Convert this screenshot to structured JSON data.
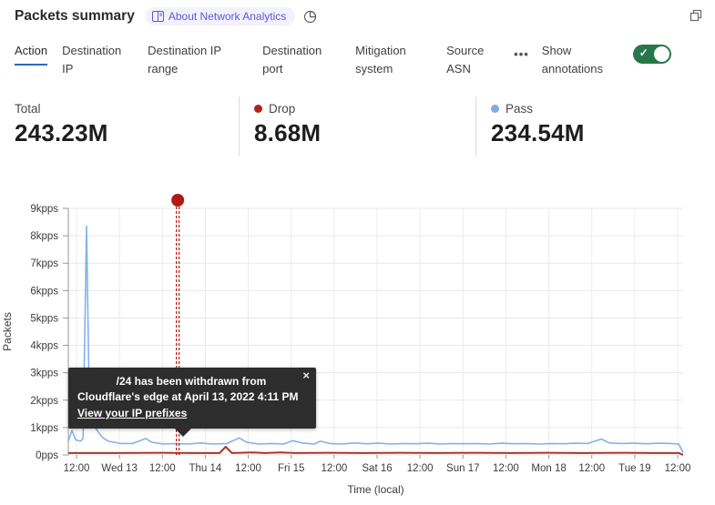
{
  "header": {
    "title": "Packets summary",
    "badge_label": "About Network Analytics"
  },
  "icons": {
    "more_tabs": "•••",
    "toggle_check": "✓",
    "tooltip_close": "×"
  },
  "tabs": {
    "items": [
      {
        "label": "Action",
        "active": true
      },
      {
        "label": "Destination IP",
        "active": false
      },
      {
        "label": "Destination IP range",
        "active": false
      },
      {
        "label": "Destination port",
        "active": false
      },
      {
        "label": "Mitigation system",
        "active": false
      },
      {
        "label": "Source ASN",
        "active": false
      }
    ],
    "show_annotations_label": "Show annotations",
    "annotations_toggle_on": true
  },
  "stats": {
    "items": [
      {
        "label": "Total",
        "value": "243.23M",
        "dot": ""
      },
      {
        "label": "Drop",
        "value": "8.68M",
        "dot": "#b32117"
      },
      {
        "label": "Pass",
        "value": "234.54M",
        "dot": "#7fabe6"
      }
    ]
  },
  "annotation_tooltip": {
    "line1": "/24 has been withdrawn from",
    "line2": "Cloudflare's edge at April 13, 2022 4:11 PM",
    "link": "View your IP prefixes"
  },
  "chart_data": {
    "type": "line",
    "title": "",
    "xlabel": "Time (local)",
    "ylabel": "Packets",
    "ylim_kpps": [
      0,
      9
    ],
    "ytick_labels": [
      "0pps",
      "1kpps",
      "2kpps",
      "3kpps",
      "4kpps",
      "5kpps",
      "6kpps",
      "7kpps",
      "8kpps",
      "9kpps"
    ],
    "xtick_labels": [
      "12:00",
      "Wed 13",
      "12:00",
      "Thu 14",
      "12:00",
      "Fri 15",
      "12:00",
      "Sat 16",
      "12:00",
      "Sun 17",
      "12:00",
      "Mon 18",
      "12:00",
      "Tue 19",
      "12:00"
    ],
    "grid": true,
    "units": "kpps",
    "annotation": {
      "x_frac": 0.178,
      "color": "#b31912",
      "marker": "dot-with-dashed-vline",
      "label": "/24 has been withdrawn from Cloudflare's edge at April 13, 2022 4:11 PM"
    },
    "series": [
      {
        "name": "Pass",
        "color": "#85b1e8",
        "points": [
          [
            0.0,
            0.5
          ],
          [
            0.006,
            0.9
          ],
          [
            0.012,
            0.55
          ],
          [
            0.02,
            0.5
          ],
          [
            0.024,
            0.6
          ],
          [
            0.0296,
            8.35
          ],
          [
            0.034,
            2.0
          ],
          [
            0.038,
            1.25
          ],
          [
            0.045,
            0.95
          ],
          [
            0.055,
            0.65
          ],
          [
            0.065,
            0.5
          ],
          [
            0.085,
            0.42
          ],
          [
            0.105,
            0.42
          ],
          [
            0.126,
            0.6
          ],
          [
            0.136,
            0.46
          ],
          [
            0.155,
            0.4
          ],
          [
            0.175,
            0.42
          ],
          [
            0.195,
            0.4
          ],
          [
            0.215,
            0.44
          ],
          [
            0.235,
            0.4
          ],
          [
            0.258,
            0.42
          ],
          [
            0.278,
            0.62
          ],
          [
            0.29,
            0.46
          ],
          [
            0.31,
            0.4
          ],
          [
            0.33,
            0.42
          ],
          [
            0.35,
            0.4
          ],
          [
            0.365,
            0.52
          ],
          [
            0.38,
            0.44
          ],
          [
            0.4,
            0.4
          ],
          [
            0.41,
            0.5
          ],
          [
            0.425,
            0.42
          ],
          [
            0.445,
            0.4
          ],
          [
            0.465,
            0.44
          ],
          [
            0.485,
            0.41
          ],
          [
            0.505,
            0.43
          ],
          [
            0.525,
            0.4
          ],
          [
            0.545,
            0.42
          ],
          [
            0.565,
            0.41
          ],
          [
            0.585,
            0.43
          ],
          [
            0.605,
            0.4
          ],
          [
            0.625,
            0.42
          ],
          [
            0.645,
            0.41
          ],
          [
            0.665,
            0.42
          ],
          [
            0.685,
            0.4
          ],
          [
            0.705,
            0.43
          ],
          [
            0.725,
            0.41
          ],
          [
            0.745,
            0.42
          ],
          [
            0.765,
            0.4
          ],
          [
            0.785,
            0.42
          ],
          [
            0.805,
            0.41
          ],
          [
            0.825,
            0.43
          ],
          [
            0.845,
            0.42
          ],
          [
            0.867,
            0.58
          ],
          [
            0.88,
            0.44
          ],
          [
            0.9,
            0.42
          ],
          [
            0.92,
            0.43
          ],
          [
            0.94,
            0.41
          ],
          [
            0.96,
            0.43
          ],
          [
            0.98,
            0.42
          ],
          [
            0.993,
            0.4
          ],
          [
            1.0,
            0.08
          ]
        ]
      },
      {
        "name": "Drop",
        "color": "#a8352a",
        "points": [
          [
            0.0,
            0.07
          ],
          [
            0.08,
            0.07
          ],
          [
            0.15,
            0.08
          ],
          [
            0.2,
            0.07
          ],
          [
            0.246,
            0.07
          ],
          [
            0.256,
            0.3
          ],
          [
            0.266,
            0.07
          ],
          [
            0.3,
            0.09
          ],
          [
            0.32,
            0.07
          ],
          [
            0.345,
            0.09
          ],
          [
            0.37,
            0.07
          ],
          [
            0.42,
            0.08
          ],
          [
            0.48,
            0.07
          ],
          [
            0.54,
            0.08
          ],
          [
            0.6,
            0.07
          ],
          [
            0.66,
            0.08
          ],
          [
            0.72,
            0.07
          ],
          [
            0.78,
            0.08
          ],
          [
            0.84,
            0.07
          ],
          [
            0.9,
            0.08
          ],
          [
            0.95,
            0.07
          ],
          [
            0.993,
            0.07
          ],
          [
            1.0,
            0.0
          ]
        ]
      }
    ]
  }
}
